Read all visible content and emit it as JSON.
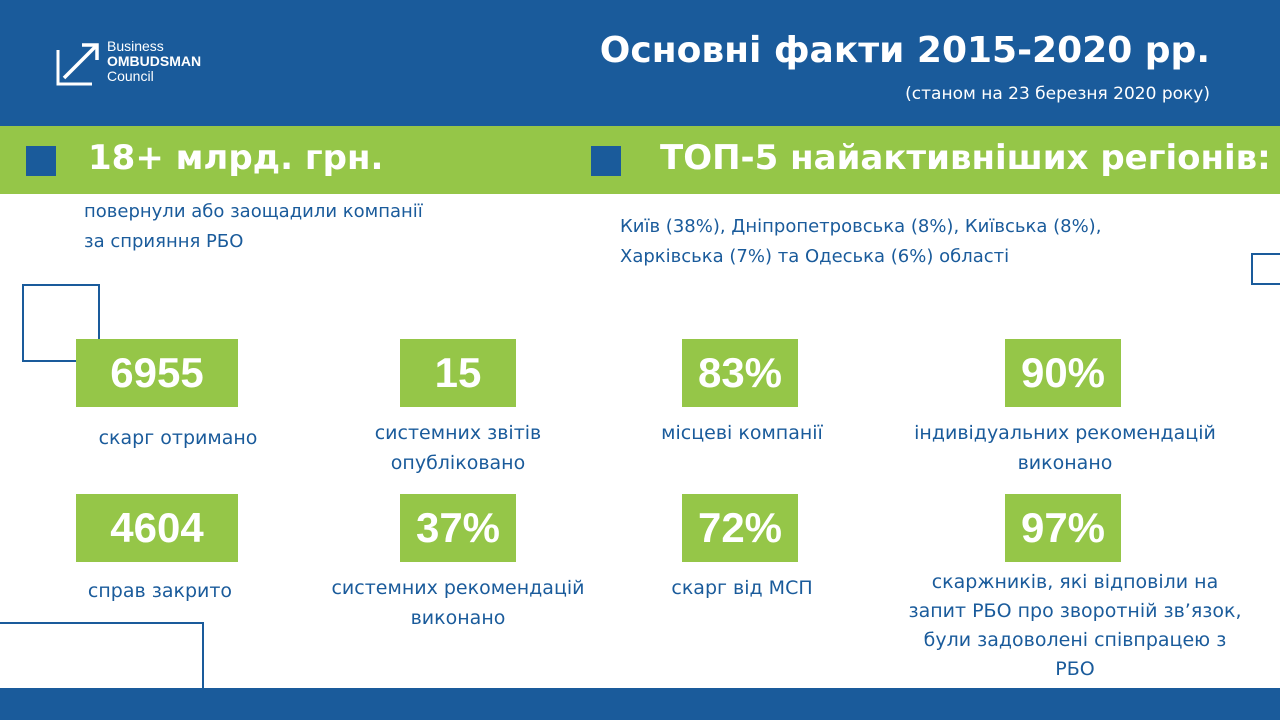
{
  "logo": {
    "line1": "Business",
    "line2": "OMBUDSMAN",
    "line3": "Council"
  },
  "header": {
    "title": "Основні факти 2015-2020 рр.",
    "subtitle": "(станом на 23 березня 2020 року)"
  },
  "band": {
    "left": "18+ млрд. грн.",
    "right": "ТОП-5 найактивніших регіонів:"
  },
  "desc": {
    "left_line1": "повернули або заощадили компанії",
    "left_line2": "за сприяння РБО",
    "right_line1": "Київ (38%), Дніпропетровська (8%), Київська (8%),",
    "right_line2": "Харківська (7%) та Одеська (6%) області"
  },
  "stats": [
    {
      "value": "6955",
      "label1": "скарг отримано",
      "label2": ""
    },
    {
      "value": "15",
      "label1": "системних звітів",
      "label2": "опубліковано"
    },
    {
      "value": "83%",
      "label1": "місцеві компанії",
      "label2": ""
    },
    {
      "value": "90%",
      "label1": "індивідуальних рекомендацій",
      "label2": "виконано"
    },
    {
      "value": "4604",
      "label1": "справ закрито",
      "label2": ""
    },
    {
      "value": "37%",
      "label1": "системних рекомендацій",
      "label2": "виконано"
    },
    {
      "value": "72%",
      "label1": "скарг від МСП",
      "label2": ""
    },
    {
      "value": "97%",
      "label1": "скаржників, які відповіли на",
      "label2": "запит РБО про зворотній зв’язок,",
      "label3": "були задоволені співпрацею з",
      "label4": "РБО"
    }
  ],
  "colors": {
    "blue": "#1a5b9b",
    "green": "#95c648"
  }
}
